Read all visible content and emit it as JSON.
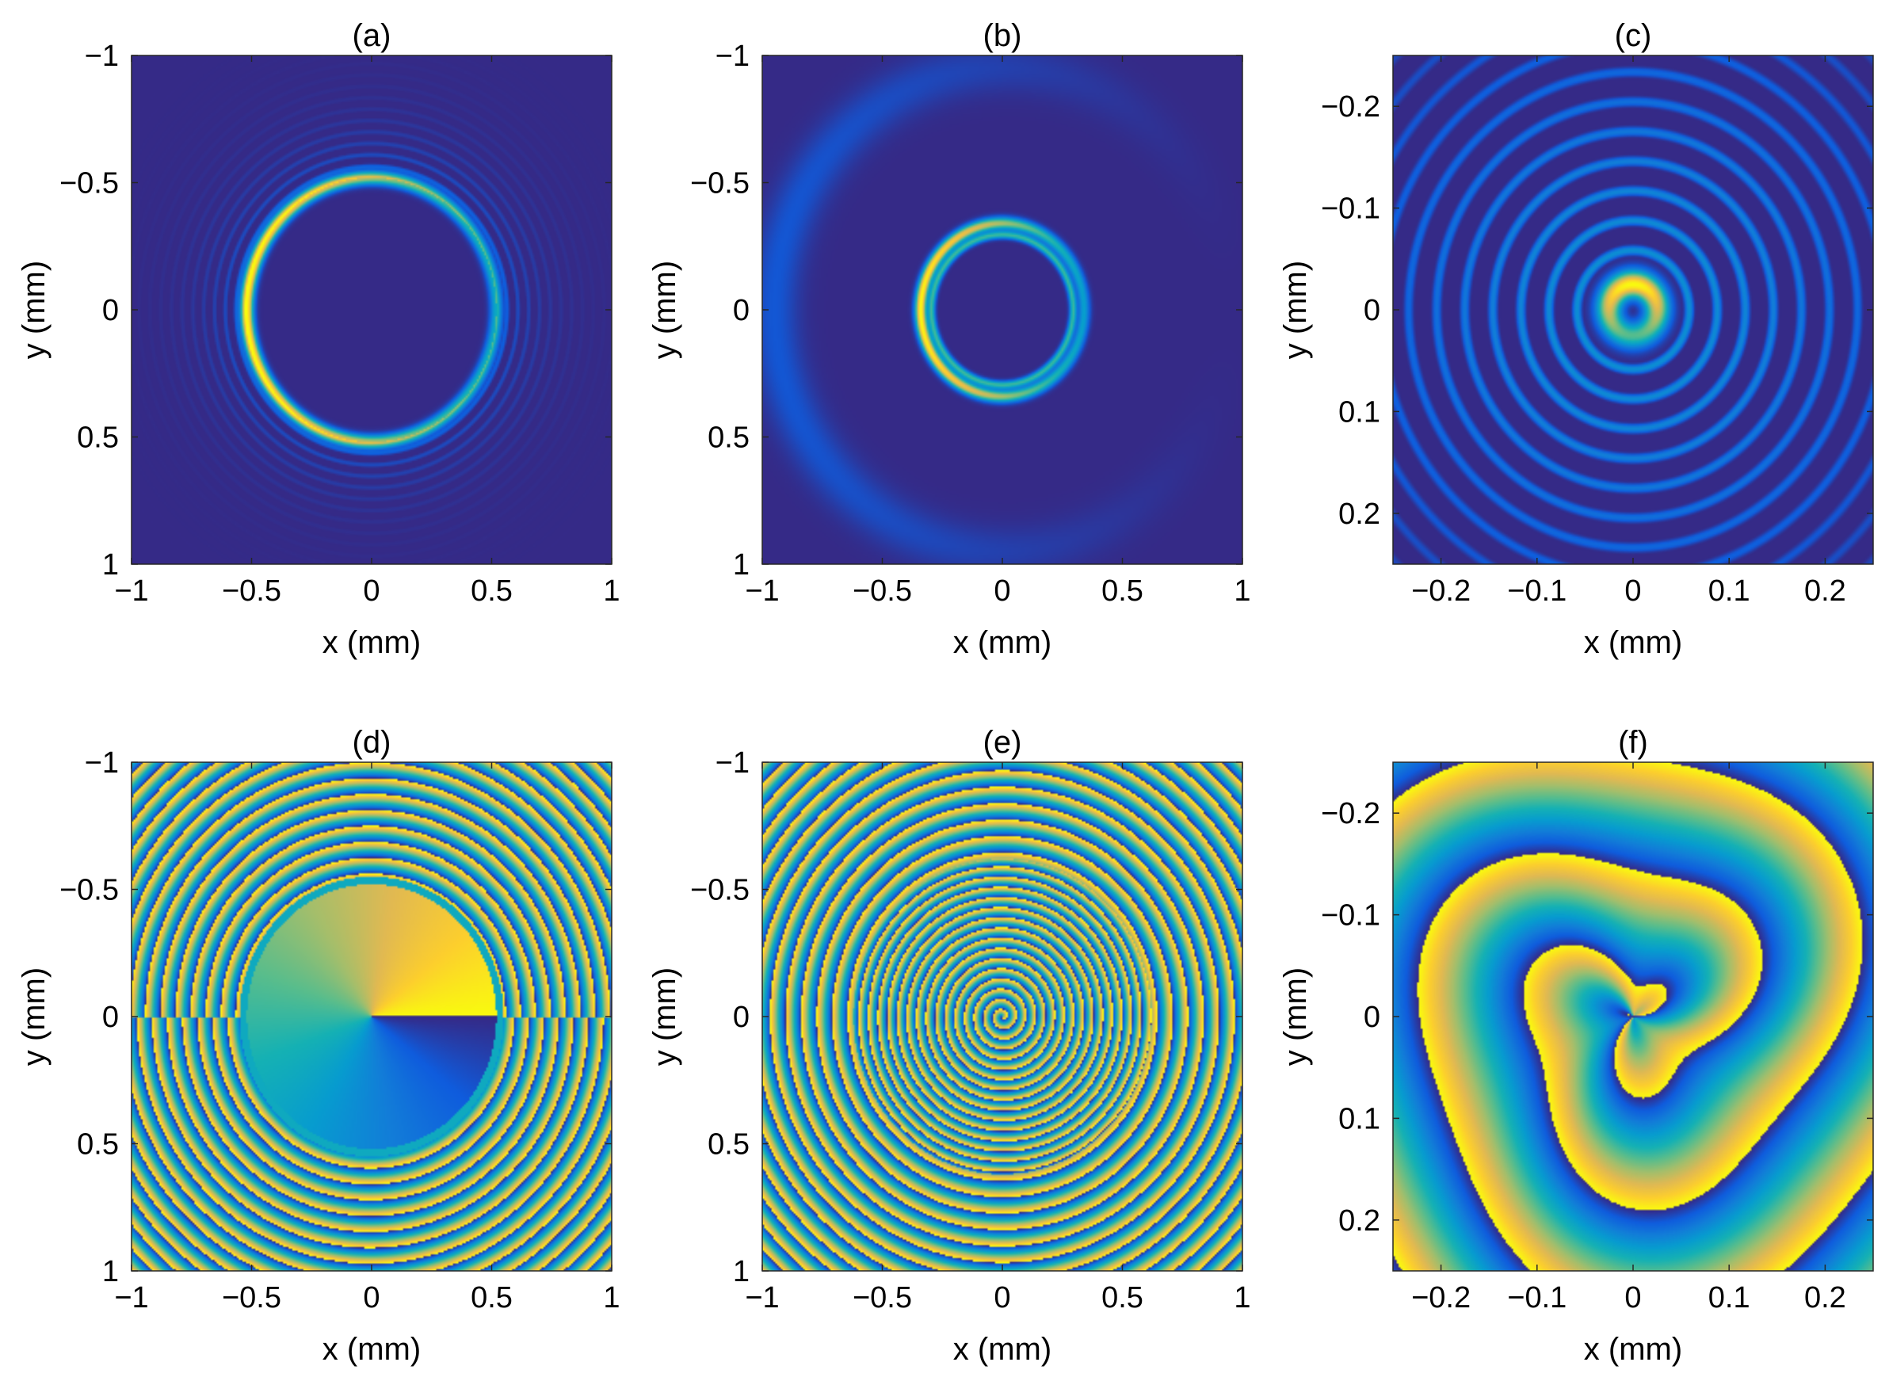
{
  "chart_data": [
    {
      "type": "heatmap",
      "title": "(a)",
      "quantity": "intensity",
      "colormap": "parula",
      "xlabel": "x (mm)",
      "ylabel": "y (mm)",
      "xlim": [
        -1,
        1
      ],
      "ylim": [
        -1,
        1
      ],
      "y_direction": "reversed",
      "xticks": [
        -1,
        -0.5,
        0,
        0.5,
        1
      ],
      "yticks": [
        -1,
        -0.5,
        0,
        0.5,
        1
      ],
      "features": {
        "ring_radius": 0.52,
        "ring_brightest_side": "left",
        "outer_fringes": true
      }
    },
    {
      "type": "heatmap",
      "title": "(b)",
      "quantity": "intensity",
      "colormap": "parula",
      "xlabel": "x (mm)",
      "ylabel": "y (mm)",
      "xlim": [
        -1,
        1
      ],
      "ylim": [
        -1,
        1
      ],
      "y_direction": "reversed",
      "xticks": [
        -1,
        -0.5,
        0,
        0.5,
        1
      ],
      "yticks": [
        -1,
        -0.5,
        0,
        0.5,
        1
      ],
      "features": {
        "ring_radius": 0.34,
        "ring_brightest_side": "left",
        "outer_arc_radius": 0.95
      }
    },
    {
      "type": "heatmap",
      "title": "(c)",
      "quantity": "intensity",
      "colormap": "parula",
      "xlabel": "x (mm)",
      "ylabel": "y (mm)",
      "xlim": [
        -0.25,
        0.25
      ],
      "ylim": [
        -0.25,
        0.25
      ],
      "y_direction": "reversed",
      "xticks": [
        -0.2,
        -0.1,
        0,
        0.1,
        0.2
      ],
      "yticks": [
        -0.2,
        -0.1,
        0,
        0.1,
        0.2
      ],
      "features": {
        "core_radius": 0.025,
        "concentric_rings": true
      }
    },
    {
      "type": "heatmap",
      "title": "(d)",
      "quantity": "phase",
      "colormap": "parula",
      "xlabel": "x (mm)",
      "ylabel": "y (mm)",
      "xlim": [
        -1,
        1
      ],
      "ylim": [
        -1,
        1
      ],
      "y_direction": "reversed",
      "xticks": [
        -1,
        -0.5,
        0,
        0.5,
        1
      ],
      "yticks": [
        -1,
        -0.5,
        0,
        0.5,
        1
      ],
      "features": {
        "inner_disk_radius": 0.55,
        "pattern": "azimuthal ramp inside, concentric rings outside"
      }
    },
    {
      "type": "heatmap",
      "title": "(e)",
      "quantity": "phase",
      "colormap": "parula",
      "xlabel": "x (mm)",
      "ylabel": "y (mm)",
      "xlim": [
        -1,
        1
      ],
      "ylim": [
        -1,
        1
      ],
      "y_direction": "reversed",
      "xticks": [
        -1,
        -0.5,
        0,
        0.5,
        1
      ],
      "yticks": [
        -1,
        -0.5,
        0,
        0.5,
        1
      ],
      "features": {
        "pattern": "spiral inside, concentric rings outside",
        "spiral_radius": 0.62
      }
    },
    {
      "type": "heatmap",
      "title": "(f)",
      "quantity": "phase",
      "colormap": "parula",
      "xlabel": "x (mm)",
      "ylabel": "y (mm)",
      "xlim": [
        -0.25,
        0.25
      ],
      "ylim": [
        -0.25,
        0.25
      ],
      "y_direction": "reversed",
      "xticks": [
        -0.2,
        -0.1,
        0,
        0.1,
        0.2
      ],
      "yticks": [
        -0.2,
        -0.1,
        0,
        0.1,
        0.2
      ],
      "features": {
        "pattern": "broad spiral"
      }
    }
  ]
}
